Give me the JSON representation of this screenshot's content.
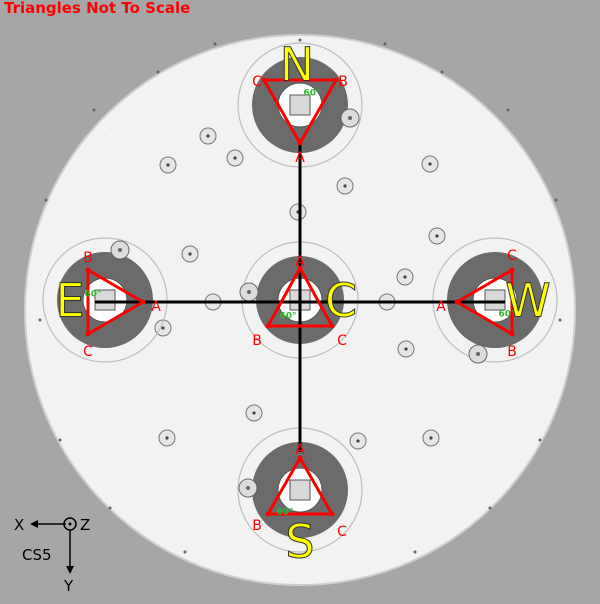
{
  "title": "Triangles Not To Scale",
  "stations": [
    {
      "id": "N",
      "label": "N",
      "vertices": [
        "A",
        "B",
        "C"
      ],
      "angle": "60°"
    },
    {
      "id": "E",
      "label": "E",
      "vertices": [
        "A",
        "B",
        "C"
      ],
      "angle": "60°"
    },
    {
      "id": "C",
      "label": "C",
      "vertices": [
        "A",
        "B",
        "C"
      ],
      "angle": "60°"
    },
    {
      "id": "W",
      "label": "W",
      "vertices": [
        "A",
        "B",
        "C"
      ],
      "angle": "60°"
    },
    {
      "id": "S",
      "label": "S",
      "vertices": [
        "A",
        "B",
        "C"
      ],
      "angle": "60°"
    }
  ],
  "coordinate_system": {
    "name": "CS5",
    "x_label": "X",
    "y_label": "Y",
    "z_label": "Z"
  },
  "colors": {
    "background": "#a6a6a6",
    "plate": "#f2f2f2",
    "hub": "#6b6b6b",
    "triangle": "#ff0000",
    "station_label": "#ffff00",
    "angle": "#2eb82e",
    "axes": "#000000"
  }
}
